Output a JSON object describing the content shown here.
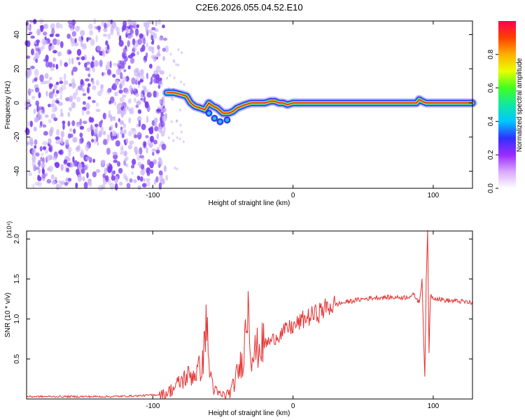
{
  "title": "C2E6.2026.055.04.52.E10",
  "colors": {
    "snr_line": "#e53030",
    "ridge_core": "#e8221a",
    "ridge_mid": "#ffd400",
    "ridge_outer": "#17c8d8",
    "ridge_edge": "#2424ff",
    "noise": "#7a3cf0",
    "noise_light": "#c9b2f7"
  },
  "chart_data": [
    {
      "type": "heatmap",
      "panel": "spectrogram",
      "xlabel": "Height of straight line (km)",
      "ylabel": "Frequency (Hz)",
      "xlim": [
        -190,
        128
      ],
      "ylim": [
        -50,
        48
      ],
      "xticks": [
        -100,
        0,
        100
      ],
      "xtick_labels": [
        "-100",
        "0",
        "100"
      ],
      "yticks": [
        -40,
        -20,
        0,
        20,
        40
      ],
      "ytick_labels": [
        "-40",
        "-20",
        "0",
        "20",
        "40"
      ],
      "noise_region_x": [
        -190,
        -90
      ],
      "ridge": {
        "x": [
          -90,
          -85,
          -80,
          -76,
          -73,
          -70,
          -66,
          -63,
          -60,
          -57,
          -54,
          -50,
          -46,
          -43,
          -40,
          -37,
          -34,
          -30,
          -25,
          -20,
          -16,
          -13,
          -10,
          -7,
          -4,
          0,
          10,
          20,
          40,
          60,
          80,
          88,
          90,
          92,
          95,
          128
        ],
        "y": [
          6,
          6,
          5,
          4,
          0,
          -2,
          -3,
          -4,
          0,
          -2,
          -3,
          -6,
          -6,
          -5,
          -3,
          -2,
          -1,
          0,
          0,
          0,
          1,
          1,
          0,
          0,
          -1,
          0,
          0,
          0,
          0,
          0,
          0,
          0,
          2,
          1,
          0,
          0
        ]
      },
      "secondary_blobs": {
        "x": [
          -60,
          -56,
          -52,
          -47
        ],
        "y": [
          -6,
          -9,
          -11,
          -10
        ]
      },
      "colorbar": {
        "label": "Normalized spectral amplitude",
        "range": [
          0,
          1
        ],
        "ticks": [
          0.0,
          0.2,
          0.4,
          0.6,
          0.8
        ],
        "tick_labels": [
          "0.0",
          "0.2",
          "0.4",
          "0.6",
          "0.8"
        ],
        "stops": [
          "#ffffff",
          "#d9a8ff",
          "#9b2bff",
          "#3030ff",
          "#00c8ff",
          "#10e8a0",
          "#40ff20",
          "#e8ff00",
          "#ffb000",
          "#ff4000",
          "#ff0050"
        ]
      }
    },
    {
      "type": "line",
      "panel": "snr",
      "xlabel": "Height of straight line (km)",
      "ylabel": "SNR (10 * v/v)",
      "y_multiplier": "(x10⁴)",
      "xlim": [
        -190,
        128
      ],
      "ylim": [
        0,
        2.1
      ],
      "xticks": [
        -100,
        0,
        100
      ],
      "xtick_labels": [
        "-100",
        "0",
        "100"
      ],
      "yticks": [
        0.5,
        1.0,
        1.5,
        2.0
      ],
      "ytick_labels": [
        "0.5",
        "1.0",
        "1.5",
        "2.0"
      ],
      "series": [
        {
          "name": "SNR",
          "x": [
            -190,
            -170,
            -150,
            -130,
            -110,
            -100,
            -92,
            -88,
            -84,
            -80,
            -76,
            -72,
            -68,
            -64,
            -62,
            -60,
            -58,
            -56,
            -52,
            -48,
            -44,
            -40,
            -36,
            -34,
            -32,
            -30,
            -28,
            -26,
            -24,
            -20,
            -16,
            -12,
            -8,
            -4,
            0,
            4,
            8,
            12,
            16,
            20,
            25,
            30,
            40,
            50,
            60,
            70,
            80,
            86,
            88,
            90,
            92,
            94,
            95,
            96,
            97,
            98,
            100,
            104,
            110,
            120,
            128
          ],
          "y": [
            0.03,
            0.03,
            0.03,
            0.03,
            0.04,
            0.05,
            0.06,
            0.1,
            0.15,
            0.22,
            0.28,
            0.3,
            0.35,
            0.45,
            1.1,
            0.4,
            0.25,
            0.1,
            0.05,
            0.05,
            0.1,
            0.3,
            0.5,
            0.8,
            1.33,
            0.6,
            0.55,
            0.62,
            0.65,
            0.7,
            0.72,
            0.78,
            0.82,
            0.88,
            0.9,
            0.95,
            1.0,
            1.03,
            1.06,
            1.1,
            1.15,
            1.18,
            1.22,
            1.25,
            1.27,
            1.27,
            1.27,
            1.3,
            1.26,
            1.2,
            1.5,
            0.25,
            1.45,
            2.1,
            0.6,
            1.3,
            1.27,
            1.25,
            1.23,
            1.22,
            1.2
          ]
        }
      ]
    }
  ]
}
